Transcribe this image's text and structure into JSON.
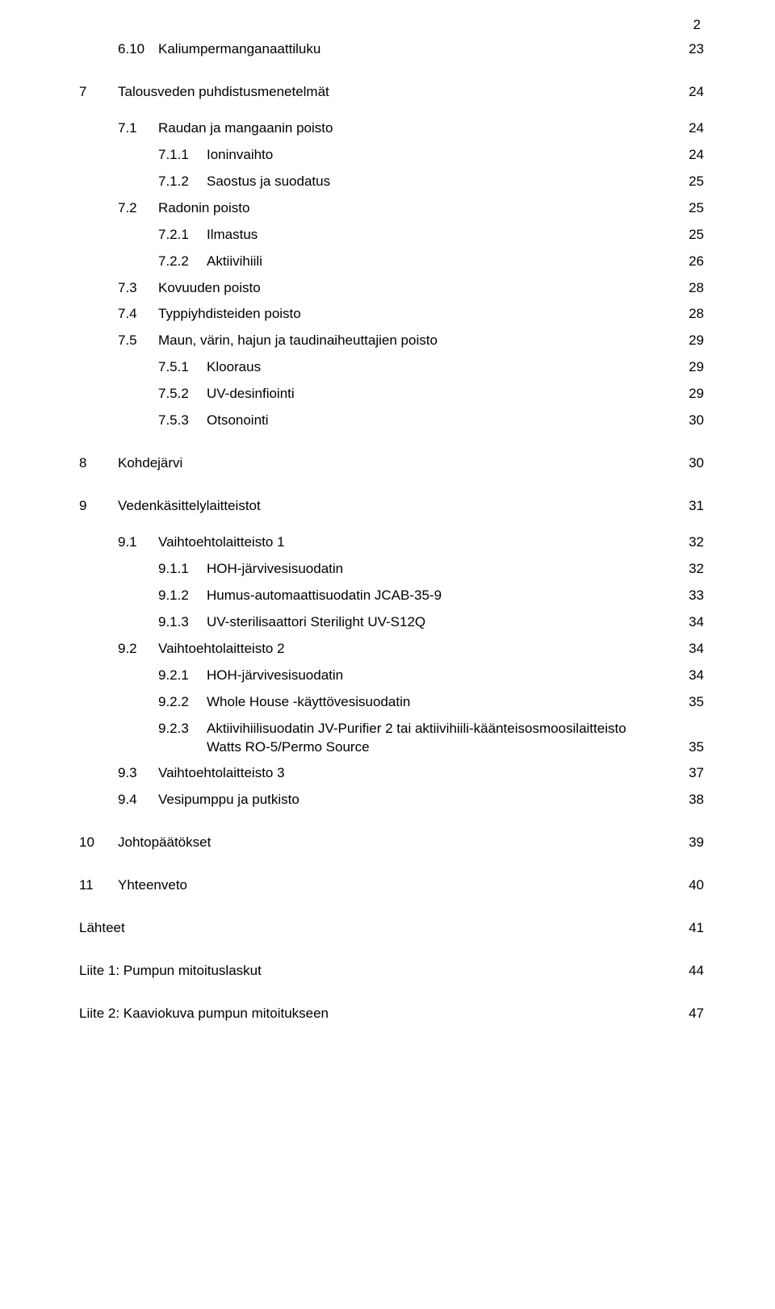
{
  "page_number": "2",
  "font": {
    "family": "Verdana",
    "size_pt": 10.5,
    "color": "#000000"
  },
  "background_color": "#ffffff",
  "entries": [
    {
      "lvl": 1,
      "num": "6.10",
      "label": "Kaliumpermanganaattiluku",
      "page": "23",
      "gap": ""
    },
    {
      "lvl": 0,
      "num": "7",
      "label": "Talousveden puhdistusmenetelmät",
      "page": "24",
      "gap": "gap-l"
    },
    {
      "lvl": 1,
      "num": "7.1",
      "label": "Raudan ja mangaanin poisto",
      "page": "24",
      "gap": "gap-m"
    },
    {
      "lvl": 2,
      "num": "7.1.1",
      "label": "Ioninvaihto",
      "page": "24",
      "gap": "gap-s"
    },
    {
      "lvl": 2,
      "num": "7.1.2",
      "label": "Saostus ja suodatus",
      "page": "25",
      "gap": "gap-s"
    },
    {
      "lvl": 1,
      "num": "7.2",
      "label": "Radonin poisto",
      "page": "25",
      "gap": "gap-s"
    },
    {
      "lvl": 2,
      "num": "7.2.1",
      "label": "Ilmastus",
      "page": "25",
      "gap": "gap-s"
    },
    {
      "lvl": 2,
      "num": "7.2.2",
      "label": "Aktiivihiili",
      "page": "26",
      "gap": "gap-s"
    },
    {
      "lvl": 1,
      "num": "7.3",
      "label": "Kovuuden poisto",
      "page": "28",
      "gap": "gap-s"
    },
    {
      "lvl": 1,
      "num": "7.4",
      "label": "Typpiyhdisteiden poisto",
      "page": "28",
      "gap": "gap-s"
    },
    {
      "lvl": 1,
      "num": "7.5",
      "label": "Maun, värin, hajun ja taudinaiheuttajien poisto",
      "page": "29",
      "gap": "gap-s"
    },
    {
      "lvl": 2,
      "num": "7.5.1",
      "label": "Klooraus",
      "page": "29",
      "gap": "gap-s"
    },
    {
      "lvl": 2,
      "num": "7.5.2",
      "label": "UV-desinfiointi",
      "page": "29",
      "gap": "gap-s"
    },
    {
      "lvl": 2,
      "num": "7.5.3",
      "label": "Otsonointi",
      "page": "30",
      "gap": "gap-s"
    },
    {
      "lvl": 0,
      "num": "8",
      "label": "Kohdejärvi",
      "page": "30",
      "gap": "gap-l"
    },
    {
      "lvl": 0,
      "num": "9",
      "label": "Vedenkäsittelylaitteistot",
      "page": "31",
      "gap": "gap-l"
    },
    {
      "lvl": 1,
      "num": "9.1",
      "label": "Vaihtoehtolaitteisto 1",
      "page": "32",
      "gap": "gap-m"
    },
    {
      "lvl": 2,
      "num": "9.1.1",
      "label": "HOH-järvivesisuodatin",
      "page": "32",
      "gap": "gap-s"
    },
    {
      "lvl": 2,
      "num": "9.1.2",
      "label": "Humus-automaattisuodatin JCAB-35-9",
      "page": "33",
      "gap": "gap-s"
    },
    {
      "lvl": 2,
      "num": "9.1.3",
      "label": "UV-sterilisaattori Sterilight UV-S12Q",
      "page": "34",
      "gap": "gap-s"
    },
    {
      "lvl": 1,
      "num": "9.2",
      "label": "Vaihtoehtolaitteisto 2",
      "page": "34",
      "gap": "gap-s"
    },
    {
      "lvl": 2,
      "num": "9.2.1",
      "label": "HOH-järvivesisuodatin",
      "page": "34",
      "gap": "gap-s"
    },
    {
      "lvl": 2,
      "num": "9.2.2",
      "label": "Whole House -käyttövesisuodatin",
      "page": "35",
      "gap": "gap-s"
    },
    {
      "lvl": 2,
      "num": "9.2.3",
      "label": "Aktiivihiilisuodatin JV-Purifier 2 tai aktiivihiili-käänteisosmoosilaitteisto",
      "label2": "Watts RO-5/Permo Source",
      "page": "35",
      "gap": "gap-s",
      "multi": true
    },
    {
      "lvl": 1,
      "num": "9.3",
      "label": "Vaihtoehtolaitteisto 3",
      "page": "37",
      "gap": "gap-s"
    },
    {
      "lvl": 1,
      "num": "9.4",
      "label": "Vesipumppu ja putkisto",
      "page": "38",
      "gap": "gap-s"
    },
    {
      "lvl": 0,
      "num": "10",
      "label": "Johtopäätökset",
      "page": "39",
      "gap": "gap-l"
    },
    {
      "lvl": 0,
      "num": "11",
      "label": "Yhteenveto",
      "page": "40",
      "gap": "gap-l"
    },
    {
      "lvl": 0,
      "num": "",
      "label": "Lähteet",
      "page": "41",
      "gap": "gap-l",
      "nonum": true
    },
    {
      "lvl": 0,
      "num": "",
      "label": "Liite 1: Pumpun mitoituslaskut",
      "page": "44",
      "gap": "gap-l",
      "nonum": true
    },
    {
      "lvl": 0,
      "num": "",
      "label": "Liite 2: Kaaviokuva pumpun mitoitukseen",
      "page": "47",
      "gap": "gap-l",
      "nonum": true
    }
  ]
}
